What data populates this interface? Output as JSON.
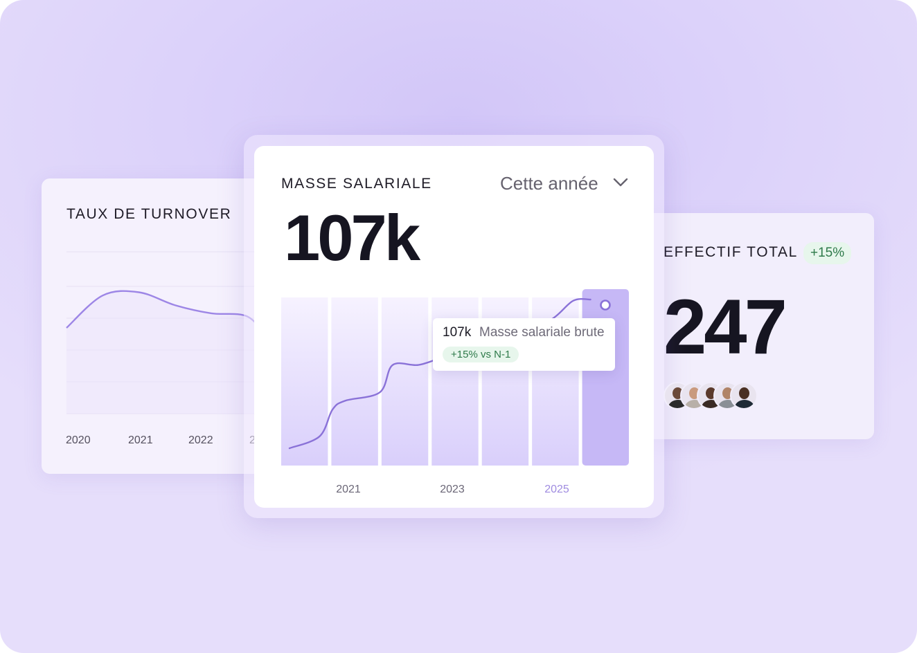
{
  "turnover_card": {
    "title": "TAUX DE TURNOVER"
  },
  "payroll_card": {
    "title": "MASSE SALARIALE",
    "value": "107k",
    "period_selector": "Cette année",
    "tooltip": {
      "value": "107k",
      "label": "Masse salariale brute",
      "badge": "+15% vs N-1"
    }
  },
  "headcount_card": {
    "title": "EFFECTIF TOTAL",
    "badge": "+15%",
    "value": "247",
    "avatars": [
      {
        "name": "avatar-1",
        "skin": "#6b4a3a",
        "shirt": "#2b2b2b"
      },
      {
        "name": "avatar-2",
        "skin": "#c99a7e",
        "shirt": "#b8b0a8"
      },
      {
        "name": "avatar-3",
        "skin": "#5b3a2c",
        "shirt": "#3a2a24"
      },
      {
        "name": "avatar-4",
        "skin": "#b08468",
        "shirt": "#8a8f96"
      },
      {
        "name": "avatar-5",
        "skin": "#4a3023",
        "shirt": "#1f2a36"
      }
    ]
  },
  "colors": {
    "accent": "#9d86e6",
    "accent_dark": "#8a72d8",
    "highlight_bar": "#c6b8f6",
    "positive_bg": "#e7f6ec",
    "positive_text": "#2e7a4a",
    "highlight_year": "#9f8be0"
  },
  "chart_data": [
    {
      "type": "line",
      "title": "TAUX DE TURNOVER",
      "x": [
        2020,
        2020.5,
        2021,
        2021.5,
        2022,
        2022.5,
        2022.8
      ],
      "values": [
        53,
        73,
        75,
        67,
        62,
        60,
        45
      ],
      "ylim": [
        0,
        100
      ],
      "tick_labels": [
        "2020",
        "2021",
        "2022",
        "2"
      ],
      "grid": true
    },
    {
      "type": "line",
      "title": "MASSE SALARIALE",
      "x": [
        2019.0,
        2019.7,
        2020.0,
        2020.3,
        2021.1,
        2021.4,
        2022.0,
        2022.6,
        2023.2,
        2023.8,
        2024.4,
        2025.1,
        2025.6,
        2026.0
      ],
      "values": [
        0,
        20,
        65,
        80,
        94,
        140,
        140,
        154,
        166,
        178,
        198,
        217,
        248,
        250
      ],
      "ylim": [
        0,
        250
      ],
      "tick_labels": [
        "2021",
        "2023",
        "2025"
      ],
      "highlight_tick": "2025",
      "bars": 7,
      "highlight_bar_index": 6,
      "grid": false
    }
  ]
}
